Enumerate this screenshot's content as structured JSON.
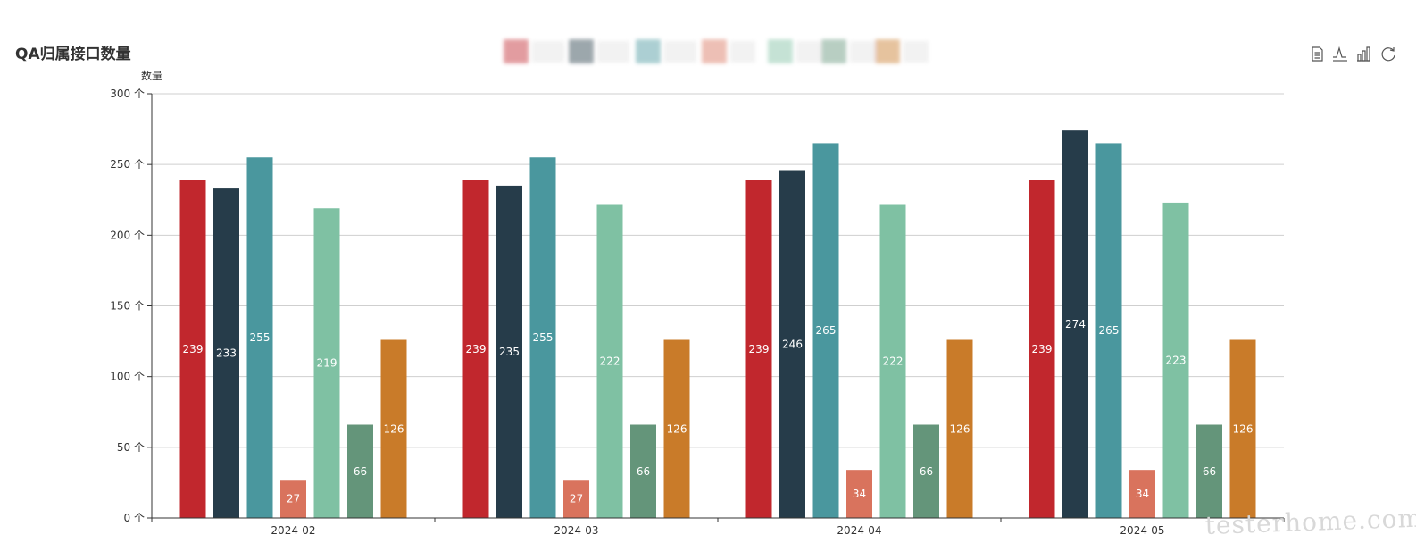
{
  "toolbox": {
    "icons": [
      "data-view-icon",
      "line-chart-icon",
      "bar-chart-icon",
      "restore-icon"
    ]
  },
  "watermark": {
    "text": "testerhome.com"
  },
  "chart_data": {
    "type": "bar",
    "title": "QA归属接口数量",
    "ylabel": "数量",
    "yunit": "个",
    "ylim": [
      0,
      300
    ],
    "yticks": [
      0,
      50,
      100,
      150,
      200,
      250,
      300
    ],
    "grid": true,
    "legend": "top-center (blurred, entries unreadable)",
    "categories": [
      "2024-02",
      "2024-03",
      "2024-04",
      "2024-05"
    ],
    "series": [
      {
        "color": "#c1272d",
        "values": [
          239,
          239,
          239,
          239
        ]
      },
      {
        "color": "#263c4a",
        "values": [
          233,
          235,
          246,
          274
        ]
      },
      {
        "color": "#4a979e",
        "values": [
          255,
          255,
          265,
          265
        ]
      },
      {
        "color": "#d9735d",
        "values": [
          27,
          27,
          34,
          34
        ]
      },
      {
        "color": "#7fc1a3",
        "values": [
          219,
          222,
          222,
          223
        ]
      },
      {
        "color": "#64957a",
        "values": [
          66,
          66,
          66,
          66
        ]
      },
      {
        "color": "#c97b29",
        "values": [
          126,
          126,
          126,
          126
        ]
      }
    ]
  }
}
